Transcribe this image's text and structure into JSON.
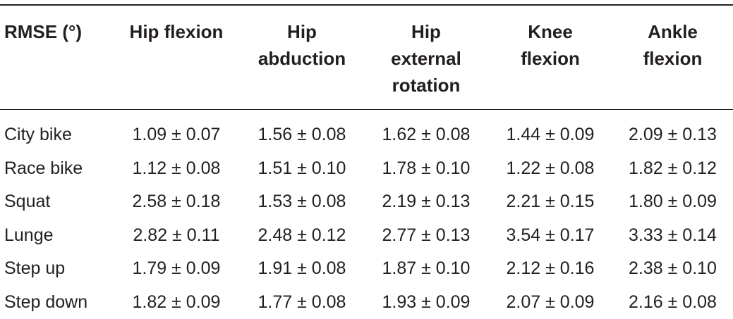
{
  "table": {
    "headers": [
      "RMSE (°)",
      "Hip flexion",
      "Hip abduction",
      "Hip external rotation",
      "Knee flexion",
      "Ankle flexion"
    ],
    "header_lines": [
      [
        "RMSE (°)"
      ],
      [
        "Hip flexion"
      ],
      [
        "Hip",
        "abduction"
      ],
      [
        "Hip",
        "external",
        "rotation"
      ],
      [
        "Knee",
        "flexion"
      ],
      [
        "Ankle",
        "flexion"
      ]
    ],
    "rows": [
      {
        "label": "City bike",
        "values": [
          "1.09 ± 0.07",
          "1.56 ± 0.08",
          "1.62 ± 0.08",
          "1.44 ± 0.09",
          "2.09 ± 0.13"
        ]
      },
      {
        "label": "Race bike",
        "values": [
          "1.12 ± 0.08",
          "1.51 ± 0.10",
          "1.78 ± 0.10",
          "1.22 ± 0.08",
          "1.82 ± 0.12"
        ]
      },
      {
        "label": "Squat",
        "values": [
          "2.58 ± 0.18",
          "1.53 ± 0.08",
          "2.19 ± 0.13",
          "2.21 ± 0.15",
          "1.80 ± 0.09"
        ]
      },
      {
        "label": "Lunge",
        "values": [
          "2.82 ± 0.11",
          "2.48 ± 0.12",
          "2.77 ± 0.13",
          "3.54 ± 0.17",
          "3.33 ± 0.14"
        ]
      },
      {
        "label": "Step up",
        "values": [
          "1.79 ± 0.09",
          "1.91 ± 0.08",
          "1.87 ± 0.10",
          "2.12 ± 0.16",
          "2.38 ± 0.10"
        ]
      },
      {
        "label": "Step down",
        "values": [
          "1.82 ± 0.09",
          "1.77 ± 0.08",
          "1.93 ± 0.09",
          "2.07 ± 0.09",
          "2.16 ± 0.08"
        ]
      }
    ]
  }
}
